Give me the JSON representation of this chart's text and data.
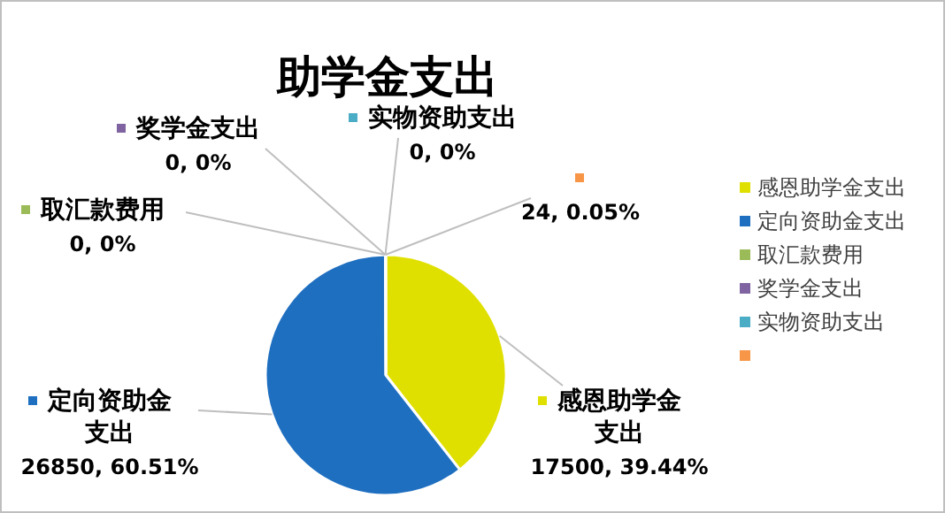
{
  "chart_data": {
    "type": "pie",
    "title": "助学金支出",
    "categories": [
      "感恩助学金支出",
      "定向资助金支出",
      "取汇款费用",
      "奖学金支出",
      "实物资助支出",
      null
    ],
    "values": [
      17500,
      26850,
      0,
      0,
      0,
      24
    ],
    "colors": [
      "#e0e000",
      "#1f6fc0",
      "#9bbb59",
      "#8064a2",
      "#4bacc6",
      "#f79646"
    ],
    "value_labels": [
      "17500, 39.44%",
      "26850, 60.51%",
      "0, 0%",
      "0, 0%",
      "0, 0%",
      "24, 0.05%"
    ],
    "legend": "right"
  }
}
